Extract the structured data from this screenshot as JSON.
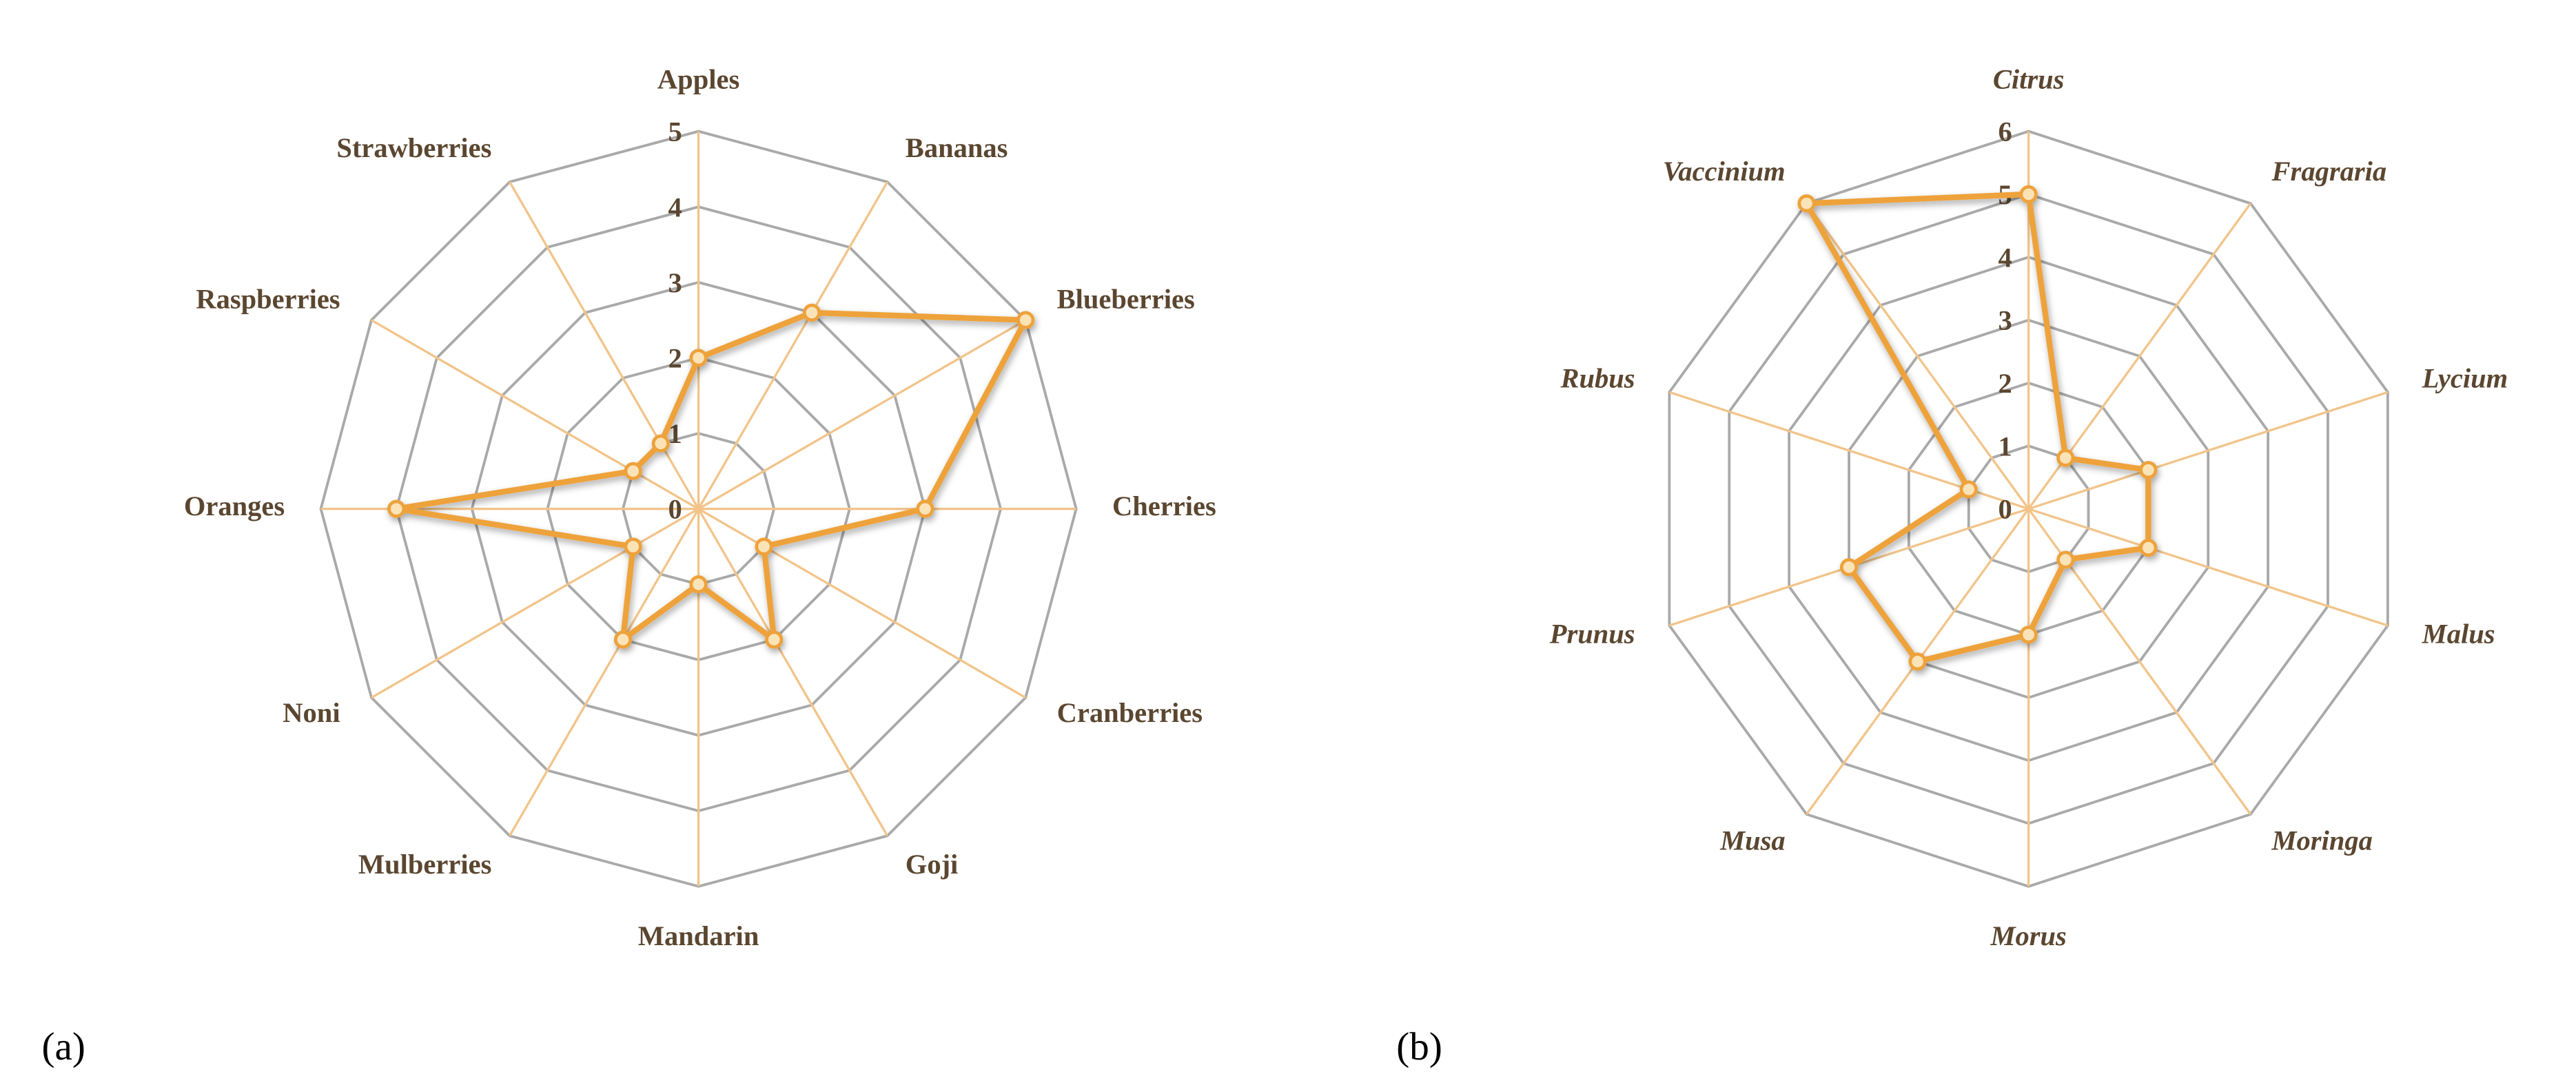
{
  "chart_data": [
    {
      "type": "radar",
      "label": "(a)",
      "categories": [
        "Apples",
        "Bananas",
        "Blueberries",
        "Cherries",
        "Cranberries",
        "Goji",
        "Mandarin",
        "Mulberries",
        "Noni",
        "Oranges",
        "Raspberries",
        "Strawberries"
      ],
      "values": [
        2,
        3,
        5,
        3,
        1,
        2,
        1,
        2,
        1,
        4,
        1,
        1
      ],
      "ylim": [
        0,
        5
      ],
      "yticks": [
        0,
        1,
        2,
        3,
        4,
        5
      ],
      "color": "#eea23a",
      "italic_categories": false
    },
    {
      "type": "radar",
      "label": "(b)",
      "categories": [
        "Citrus",
        "Fragraria",
        "Lycium",
        "Malus",
        "Moringa",
        "Morus",
        "Musa",
        "Prunus",
        "Rubus",
        "Vaccinium"
      ],
      "values": [
        5,
        1,
        2,
        2,
        1,
        2,
        3,
        3,
        1,
        6
      ],
      "ylim": [
        0,
        6
      ],
      "yticks": [
        0,
        1,
        2,
        3,
        4,
        5,
        6
      ],
      "color": "#eea23a",
      "italic_categories": true
    }
  ]
}
